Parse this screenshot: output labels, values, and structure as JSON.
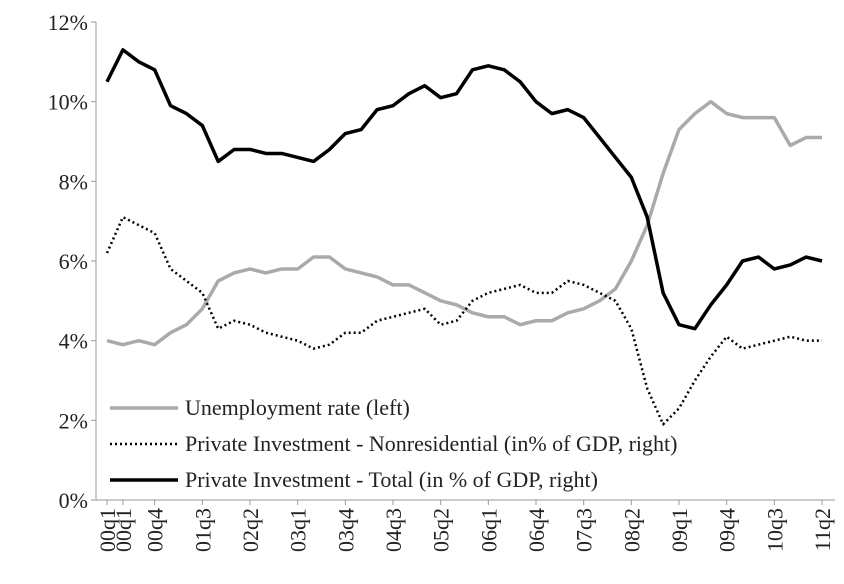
{
  "chart_data": {
    "type": "line",
    "categories": [
      "00q1",
      "00q1",
      null,
      "00q4",
      null,
      null,
      "01q3",
      null,
      null,
      "02q2",
      null,
      null,
      "03q1",
      null,
      null,
      "03q4",
      null,
      null,
      "04q3",
      null,
      null,
      "05q2",
      null,
      null,
      "06q1",
      null,
      null,
      "06q4",
      null,
      null,
      "07q3",
      null,
      null,
      "08q2",
      null,
      null,
      "09q1",
      null,
      null,
      "09q4",
      null,
      null,
      "10q3",
      null,
      null,
      "11q2"
    ],
    "series": [
      {
        "name": "Unemployment rate (left)",
        "color": "#aaaaaa",
        "dash": "solid",
        "values": [
          4.0,
          3.9,
          4.0,
          3.9,
          4.2,
          4.4,
          4.8,
          5.5,
          5.7,
          5.8,
          5.7,
          5.8,
          5.8,
          6.1,
          6.1,
          5.8,
          5.7,
          5.6,
          5.4,
          5.4,
          5.2,
          5.0,
          4.9,
          4.7,
          4.6,
          4.6,
          4.4,
          4.5,
          4.5,
          4.7,
          4.8,
          5.0,
          5.3,
          6.0,
          6.9,
          8.2,
          9.3,
          9.7,
          10.0,
          9.7,
          9.6,
          9.6,
          9.6,
          8.9,
          9.1,
          9.1
        ]
      },
      {
        "name": "Private Investment - Nonresidential (in% of GDP, right)",
        "color": "#000000",
        "dash": "dotted",
        "values": [
          6.2,
          7.1,
          6.9,
          6.7,
          5.8,
          5.5,
          5.2,
          4.3,
          4.5,
          4.4,
          4.2,
          4.1,
          4.0,
          3.8,
          3.9,
          4.2,
          4.2,
          4.5,
          4.6,
          4.7,
          4.8,
          4.4,
          4.5,
          5.0,
          5.2,
          5.3,
          5.4,
          5.2,
          5.2,
          5.5,
          5.4,
          5.2,
          5.0,
          4.3,
          2.8,
          1.9,
          2.3,
          3.0,
          3.6,
          4.1,
          3.8,
          3.9,
          4.0,
          4.1,
          4.0,
          4.0
        ]
      },
      {
        "name": "Private Investment - Total (in % of GDP, right)",
        "color": "#000000",
        "dash": "solid",
        "values": [
          10.5,
          11.3,
          11.0,
          10.8,
          9.9,
          9.7,
          9.4,
          8.5,
          8.8,
          8.8,
          8.7,
          8.7,
          8.6,
          8.5,
          8.8,
          9.2,
          9.3,
          9.8,
          9.9,
          10.2,
          10.4,
          10.1,
          10.2,
          10.8,
          10.9,
          10.8,
          10.5,
          10.0,
          9.7,
          9.8,
          9.6,
          9.1,
          8.6,
          8.1,
          7.1,
          5.2,
          4.4,
          4.3,
          4.9,
          5.4,
          6.0,
          6.1,
          5.8,
          5.9,
          6.1,
          6.0
        ]
      }
    ],
    "ylim": [
      0,
      12
    ],
    "yticks": [
      {
        "value": 0,
        "label": "0%"
      },
      {
        "value": 2,
        "label": "2%"
      },
      {
        "value": 4,
        "label": "4%"
      },
      {
        "value": 6,
        "label": "6%"
      },
      {
        "value": 8,
        "label": "8%"
      },
      {
        "value": 10,
        "label": "10%"
      },
      {
        "value": 12,
        "label": "12%"
      }
    ],
    "legend": "lower left",
    "grid": false
  }
}
